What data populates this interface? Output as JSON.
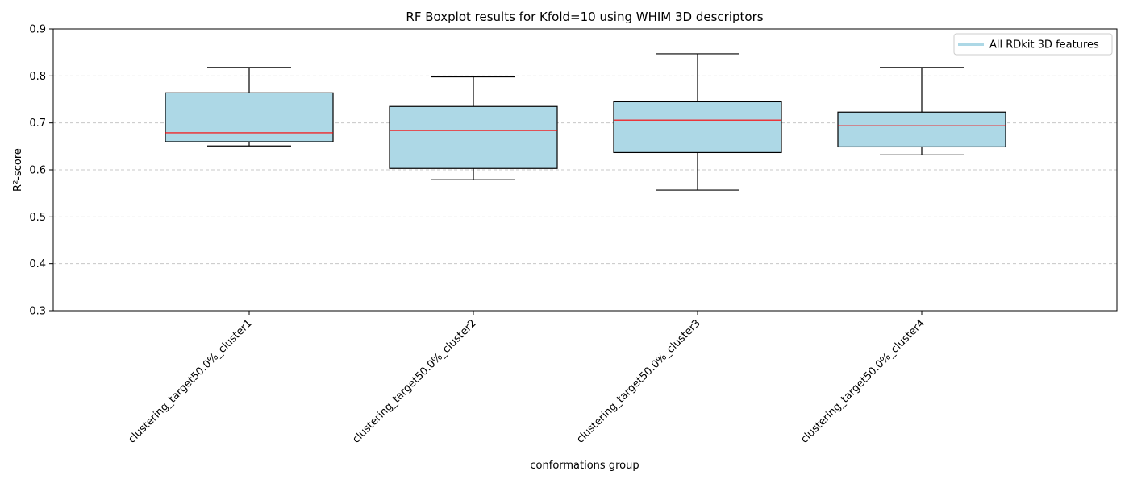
{
  "chart_data": {
    "type": "box",
    "title": "RF Boxplot results for Kfold=10 using WHIM 3D descriptors",
    "xlabel": "conformations group",
    "ylabel": "R²-score",
    "ylim": [
      0.3,
      0.9
    ],
    "yticks": [
      "0.3",
      "0.4",
      "0.5",
      "0.6",
      "0.7",
      "0.8",
      "0.9"
    ],
    "grid": "y-dashed",
    "legend_position": "top-right",
    "categories": [
      "clustering_target50.0%_cluster1",
      "clustering_target50.0%_cluster2",
      "clustering_target50.0%_cluster3",
      "clustering_target50.0%_cluster4"
    ],
    "series": [
      {
        "name": "All RDkit 3D features",
        "color": "#add8e6",
        "median_color": "#ff0000",
        "boxes": [
          {
            "whisker_low": 0.651,
            "q1": 0.66,
            "median": 0.679,
            "q3": 0.764,
            "whisker_high": 0.818
          },
          {
            "whisker_low": 0.579,
            "q1": 0.603,
            "median": 0.684,
            "q3": 0.735,
            "whisker_high": 0.798
          },
          {
            "whisker_low": 0.557,
            "q1": 0.637,
            "median": 0.706,
            "q3": 0.745,
            "whisker_high": 0.847
          },
          {
            "whisker_low": 0.632,
            "q1": 0.649,
            "median": 0.694,
            "q3": 0.723,
            "whisker_high": 0.818
          }
        ]
      }
    ]
  }
}
